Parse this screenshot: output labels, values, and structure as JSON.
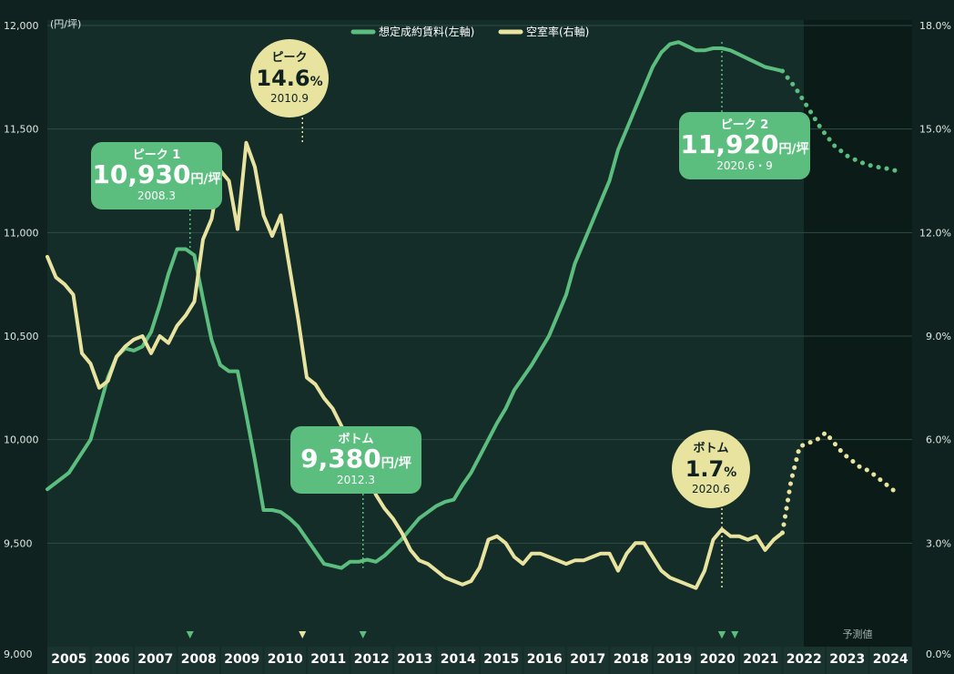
{
  "chart_data": {
    "type": "line",
    "unit_left": "(円/坪)",
    "forecast_label": "予測値",
    "categories": [
      "2005",
      "2006",
      "2007",
      "2008",
      "2009",
      "2010",
      "2011",
      "2012",
      "2013",
      "2014",
      "2015",
      "2016",
      "2017",
      "2018",
      "2019",
      "2020",
      "2021",
      "2022",
      "2023",
      "2024"
    ],
    "y_left": {
      "min": 9000,
      "max": 12000,
      "ticks": [
        "9,000",
        "9,500",
        "10,000",
        "10,500",
        "11,000",
        "11,500",
        "12,000"
      ],
      "tick_values": [
        9000,
        9500,
        10000,
        10500,
        11000,
        11500,
        12000
      ]
    },
    "y_right": {
      "min": 0,
      "max": 18,
      "ticks": [
        "0.0%",
        "3.0%",
        "6.0%",
        "9.0%",
        "12.0%",
        "15.0%",
        "18.0%"
      ],
      "tick_values": [
        0,
        3,
        6,
        9,
        12,
        15,
        18
      ]
    },
    "series": [
      {
        "name": "想定成約賃料(左軸)",
        "axis": "left",
        "color": "#5cbe7e",
        "x": [
          2005.0,
          2005.5,
          2006.0,
          2006.2,
          2006.4,
          2006.6,
          2006.8,
          2007.0,
          2007.2,
          2007.4,
          2007.6,
          2007.8,
          2008.0,
          2008.2,
          2008.4,
          2008.6,
          2008.8,
          2009.0,
          2009.2,
          2009.4,
          2009.6,
          2009.8,
          2010.0,
          2010.2,
          2010.4,
          2010.6,
          2010.8,
          2011.0,
          2011.2,
          2011.4,
          2011.6,
          2011.8,
          2012.0,
          2012.2,
          2012.4,
          2012.6,
          2012.8,
          2013.0,
          2013.2,
          2013.4,
          2013.6,
          2013.8,
          2014.0,
          2014.2,
          2014.4,
          2014.6,
          2014.8,
          2015.0,
          2015.2,
          2015.4,
          2015.6,
          2015.8,
          2016.0,
          2016.2,
          2016.4,
          2016.6,
          2016.8,
          2017.0,
          2017.2,
          2017.4,
          2017.6,
          2017.8,
          2018.0,
          2018.2,
          2018.4,
          2018.6,
          2018.8,
          2019.0,
          2019.2,
          2019.4,
          2019.6,
          2019.8,
          2020.0,
          2020.2,
          2020.4,
          2020.6,
          2020.8,
          2021.0,
          2021.2,
          2021.4,
          2021.6,
          2021.8,
          2022.0
        ],
        "values": [
          9760,
          9840,
          10000,
          10150,
          10300,
          10400,
          10440,
          10430,
          10450,
          10520,
          10650,
          10800,
          10920,
          10920,
          10890,
          10680,
          10480,
          10360,
          10330,
          10330,
          10120,
          9900,
          9660,
          9660,
          9650,
          9620,
          9580,
          9520,
          9460,
          9400,
          9390,
          9380,
          9410,
          9410,
          9420,
          9410,
          9440,
          9480,
          9520,
          9570,
          9620,
          9650,
          9680,
          9700,
          9710,
          9780,
          9840,
          9920,
          10000,
          10080,
          10150,
          10240,
          10300,
          10360,
          10430,
          10500,
          10600,
          10700,
          10850,
          10950,
          11050,
          11150,
          11250,
          11400,
          11500,
          11600,
          11700,
          11800,
          11870,
          11910,
          11920,
          11900,
          11880,
          11880,
          11890,
          11890,
          11880,
          11860,
          11840,
          11820,
          11800,
          11790,
          11780
        ]
      },
      {
        "name": "予測値 想定成約賃料",
        "axis": "left",
        "color": "#5cbe7e",
        "forecast": true,
        "x": [
          2022.0,
          2022.3,
          2022.6,
          2022.9,
          2023.2,
          2023.5,
          2023.8,
          2024.1,
          2024.4,
          2024.6
        ],
        "values": [
          11780,
          11700,
          11600,
          11500,
          11420,
          11370,
          11340,
          11320,
          11310,
          11300
        ]
      },
      {
        "name": "空室率(右軸)",
        "axis": "right",
        "color": "#e9e3a0",
        "x": [
          2005.0,
          2005.2,
          2005.4,
          2005.6,
          2005.8,
          2006.0,
          2006.2,
          2006.4,
          2006.6,
          2006.8,
          2007.0,
          2007.2,
          2007.4,
          2007.6,
          2007.8,
          2008.0,
          2008.2,
          2008.4,
          2008.6,
          2008.8,
          2009.0,
          2009.2,
          2009.4,
          2009.6,
          2009.8,
          2010.0,
          2010.2,
          2010.4,
          2010.6,
          2010.8,
          2011.0,
          2011.2,
          2011.4,
          2011.6,
          2011.8,
          2012.0,
          2012.2,
          2012.4,
          2012.6,
          2012.8,
          2013.0,
          2013.2,
          2013.4,
          2013.6,
          2013.8,
          2014.0,
          2014.2,
          2014.4,
          2014.6,
          2014.8,
          2015.0,
          2015.2,
          2015.4,
          2015.6,
          2015.8,
          2016.0,
          2016.2,
          2016.4,
          2016.6,
          2016.8,
          2017.0,
          2017.2,
          2017.4,
          2017.6,
          2017.8,
          2018.0,
          2018.2,
          2018.4,
          2018.6,
          2018.8,
          2019.0,
          2019.2,
          2019.4,
          2019.6,
          2019.8,
          2020.0,
          2020.2,
          2020.4,
          2020.6,
          2020.8,
          2021.0,
          2021.2,
          2021.4,
          2021.6,
          2021.8,
          2022.0
        ],
        "values": [
          11.3,
          10.7,
          10.5,
          10.2,
          8.5,
          8.2,
          7.5,
          7.7,
          8.4,
          8.7,
          8.9,
          9.0,
          8.5,
          9.0,
          8.8,
          9.3,
          9.6,
          10.0,
          11.8,
          12.4,
          13.8,
          13.5,
          12.1,
          14.6,
          13.9,
          12.5,
          11.9,
          12.5,
          11.0,
          9.5,
          7.8,
          7.6,
          7.2,
          6.9,
          6.4,
          5.9,
          5.4,
          5.0,
          4.4,
          4.0,
          3.7,
          3.3,
          2.8,
          2.5,
          2.4,
          2.2,
          2.0,
          1.9,
          1.8,
          1.9,
          2.3,
          3.1,
          3.2,
          3.0,
          2.6,
          2.4,
          2.7,
          2.7,
          2.6,
          2.5,
          2.4,
          2.5,
          2.5,
          2.6,
          2.7,
          2.7,
          2.2,
          2.7,
          3.0,
          3.0,
          2.6,
          2.2,
          2.0,
          1.9,
          1.8,
          1.7,
          2.2,
          3.1,
          3.4,
          3.2,
          3.2,
          3.1,
          3.2,
          2.8,
          3.1,
          3.3
        ]
      },
      {
        "name": "予測値 空室率",
        "axis": "right",
        "color": "#e9e3a0",
        "forecast": true,
        "x": [
          2022.0,
          2022.2,
          2022.4,
          2022.6,
          2022.8,
          2023.0,
          2023.2,
          2023.4,
          2023.6,
          2023.8,
          2024.0,
          2024.2,
          2024.4,
          2024.6
        ],
        "values": [
          3.3,
          4.8,
          5.8,
          5.9,
          6.0,
          6.2,
          5.9,
          5.6,
          5.4,
          5.2,
          5.1,
          4.9,
          4.7,
          4.5
        ]
      }
    ],
    "annotations": [
      {
        "label": "ピーク 1",
        "value_text": "10,930",
        "unit": "円/坪",
        "date": "2008.3",
        "x": 2008.3,
        "y": 10920,
        "axis": "left",
        "style": "box"
      },
      {
        "label": "ピーク",
        "value_text": "14.6",
        "unit": "%",
        "date": "2010.9",
        "x": 2010.9,
        "y": 14.6,
        "axis": "right",
        "style": "circle"
      },
      {
        "label": "ボトム",
        "value_text": "9,380",
        "unit": "円/坪",
        "date": "2012.3",
        "x": 2012.3,
        "y": 9380,
        "axis": "left",
        "style": "box"
      },
      {
        "label": "ピーク 2",
        "value_text": "11,920",
        "unit": "円/坪",
        "date": "2020.6・9",
        "x": 2020.6,
        "y": 11920,
        "axis": "left",
        "style": "box"
      },
      {
        "label": "ボトム",
        "value_text": "1.7",
        "unit": "%",
        "date": "2020.6",
        "x": 2020.6,
        "y": 1.7,
        "axis": "right",
        "style": "circle"
      }
    ],
    "markers": [
      {
        "x": 2008.3,
        "color": "#5cbe7e"
      },
      {
        "x": 2010.9,
        "color": "#e9e3a0"
      },
      {
        "x": 2012.3,
        "color": "#5cbe7e"
      },
      {
        "x": 2020.6,
        "color": "#e9e3a0"
      },
      {
        "x": 2020.6,
        "color": "#5cbe7e"
      },
      {
        "x": 2020.9,
        "color": "#5cbe7e"
      }
    ]
  }
}
